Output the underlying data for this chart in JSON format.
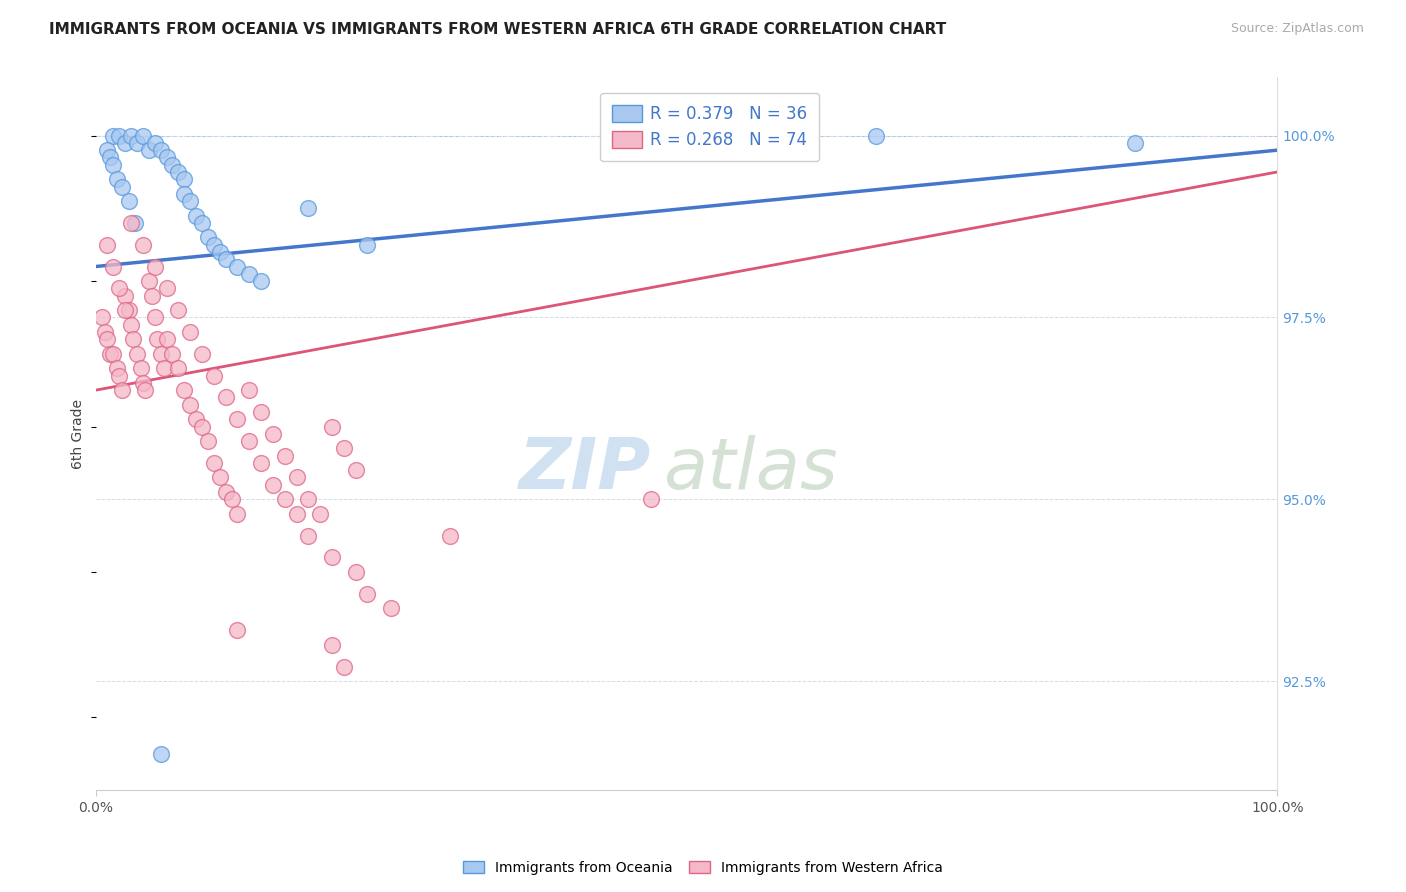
{
  "title": "IMMIGRANTS FROM OCEANIA VS IMMIGRANTS FROM WESTERN AFRICA 6TH GRADE CORRELATION CHART",
  "source": "Source: ZipAtlas.com",
  "xlabel_bottom_left": "0.0%",
  "xlabel_bottom_right": "100.0%",
  "ylabel": "6th Grade",
  "yaxis_values": [
    92.5,
    95.0,
    97.5,
    100.0
  ],
  "legend_blue_label": "R = 0.379   N = 36",
  "legend_pink_label": "R = 0.268   N = 74",
  "bottom_legend_blue": "Immigrants from Oceania",
  "bottom_legend_pink": "Immigrants from Western Africa",
  "blue_fill": "#A8C8F0",
  "blue_edge": "#5599DD",
  "pink_fill": "#F5B8C8",
  "pink_edge": "#DD6688",
  "blue_line": "#4477CC",
  "pink_line": "#DD5577",
  "grid_color": "#CCDDEE",
  "top_dash_color": "#AABBCC",
  "yaxis_label_color": "#5599DD",
  "watermark_zip_color": "#C8DCF0",
  "watermark_atlas_color": "#C8D8C8",
  "blue_x": [
    1.5,
    2.0,
    2.5,
    3.0,
    3.5,
    4.0,
    4.5,
    5.0,
    5.5,
    6.0,
    6.5,
    7.0,
    7.5,
    7.5,
    8.0,
    8.5,
    9.0,
    9.5,
    10.0,
    10.5,
    11.0,
    12.0,
    13.0,
    14.0,
    18.0,
    23.0,
    1.0,
    1.2,
    1.5,
    1.8,
    2.2,
    2.8,
    3.3,
    66.0,
    88.0,
    5.5
  ],
  "blue_y": [
    100.0,
    100.0,
    99.9,
    100.0,
    99.9,
    100.0,
    99.8,
    99.9,
    99.8,
    99.7,
    99.6,
    99.5,
    99.4,
    99.2,
    99.1,
    98.9,
    98.8,
    98.6,
    98.5,
    98.4,
    98.3,
    98.2,
    98.1,
    98.0,
    99.0,
    98.5,
    99.8,
    99.7,
    99.6,
    99.4,
    99.3,
    99.1,
    98.8,
    100.0,
    99.9,
    91.5
  ],
  "pink_x": [
    0.5,
    0.8,
    1.0,
    1.2,
    1.5,
    1.8,
    2.0,
    2.2,
    2.5,
    2.8,
    3.0,
    3.2,
    3.5,
    3.8,
    4.0,
    4.2,
    4.5,
    4.8,
    5.0,
    5.2,
    5.5,
    5.8,
    6.0,
    6.5,
    7.0,
    7.5,
    8.0,
    8.5,
    9.0,
    9.5,
    10.0,
    10.5,
    11.0,
    11.5,
    12.0,
    13.0,
    14.0,
    15.0,
    16.0,
    17.0,
    18.0,
    19.0,
    20.0,
    21.0,
    22.0,
    1.0,
    1.5,
    2.0,
    2.5,
    3.0,
    4.0,
    5.0,
    6.0,
    7.0,
    8.0,
    9.0,
    10.0,
    11.0,
    12.0,
    13.0,
    14.0,
    15.0,
    16.0,
    17.0,
    18.0,
    20.0,
    22.0,
    23.0,
    25.0,
    30.0,
    47.0,
    20.0,
    21.0,
    12.0
  ],
  "pink_y": [
    97.5,
    97.3,
    97.2,
    97.0,
    97.0,
    96.8,
    96.7,
    96.5,
    97.8,
    97.6,
    97.4,
    97.2,
    97.0,
    96.8,
    96.6,
    96.5,
    98.0,
    97.8,
    97.5,
    97.2,
    97.0,
    96.8,
    97.2,
    97.0,
    96.8,
    96.5,
    96.3,
    96.1,
    96.0,
    95.8,
    95.5,
    95.3,
    95.1,
    95.0,
    94.8,
    96.5,
    96.2,
    95.9,
    95.6,
    95.3,
    95.0,
    94.8,
    96.0,
    95.7,
    95.4,
    98.5,
    98.2,
    97.9,
    97.6,
    98.8,
    98.5,
    98.2,
    97.9,
    97.6,
    97.3,
    97.0,
    96.7,
    96.4,
    96.1,
    95.8,
    95.5,
    95.2,
    95.0,
    94.8,
    94.5,
    94.2,
    94.0,
    93.7,
    93.5,
    94.5,
    95.0,
    93.0,
    92.7,
    93.2
  ],
  "blue_line_x0": 0.0,
  "blue_line_y0": 98.2,
  "blue_line_x1": 100.0,
  "blue_line_y1": 99.8,
  "pink_line_x0": 0.0,
  "pink_line_y0": 96.5,
  "pink_line_x1": 100.0,
  "pink_line_y1": 99.5,
  "xlim_min": 0,
  "xlim_max": 100,
  "ylim_min": 91.0,
  "ylim_max": 100.8
}
